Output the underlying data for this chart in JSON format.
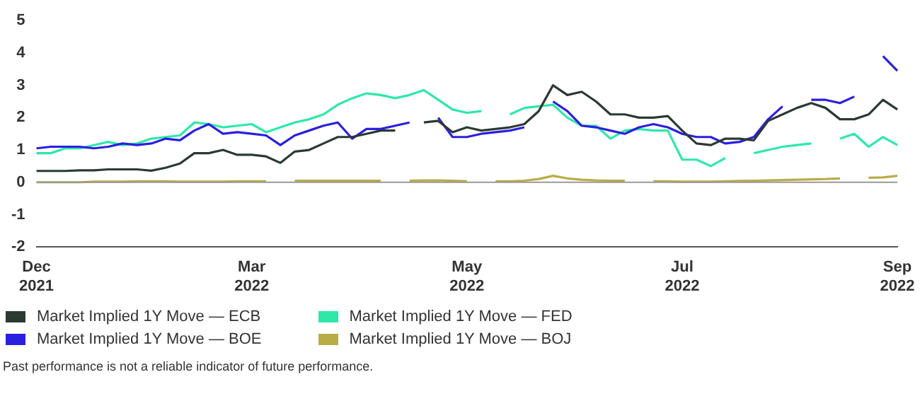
{
  "chart_data": {
    "type": "line",
    "categories": [
      "Dec 2021",
      null,
      null,
      null,
      null,
      null,
      null,
      null,
      null,
      null,
      null,
      null,
      null,
      null,
      null,
      "Mar 2022",
      null,
      null,
      null,
      null,
      null,
      null,
      null,
      null,
      null,
      null,
      null,
      null,
      null,
      null,
      "May 2022",
      null,
      null,
      null,
      null,
      null,
      null,
      null,
      null,
      null,
      null,
      null,
      null,
      null,
      null,
      "Jul 2022",
      null,
      null,
      null,
      null,
      null,
      null,
      null,
      null,
      null,
      null,
      null,
      null,
      null,
      null,
      "Sep 2022"
    ],
    "series": [
      {
        "name": "Market Implied 1Y Move — ECB",
        "color": "#2b3a33",
        "values": [
          0.35,
          0.35,
          0.35,
          0.37,
          0.37,
          0.4,
          0.4,
          0.4,
          0.36,
          0.45,
          0.58,
          0.9,
          0.9,
          1.0,
          0.85,
          0.85,
          0.8,
          0.6,
          0.95,
          1.0,
          1.2,
          1.4,
          1.4,
          1.5,
          1.6,
          1.6,
          null,
          1.85,
          1.9,
          1.55,
          1.7,
          1.6,
          1.65,
          1.7,
          1.8,
          2.2,
          3.0,
          2.7,
          2.8,
          2.5,
          2.1,
          2.1,
          2.0,
          2.0,
          2.05,
          1.6,
          1.2,
          1.15,
          1.35,
          1.35,
          1.3,
          1.9,
          2.1,
          2.3,
          2.45,
          2.3,
          1.95,
          1.95,
          2.1,
          2.55,
          2.25
        ]
      },
      {
        "name": "Market Implied 1Y Move — BOE",
        "color": "#2a1fe0",
        "values": [
          1.05,
          1.1,
          1.1,
          1.1,
          1.05,
          1.1,
          1.2,
          1.15,
          1.2,
          1.35,
          1.3,
          1.6,
          1.8,
          1.5,
          1.55,
          1.5,
          1.45,
          1.15,
          1.45,
          1.6,
          1.75,
          1.85,
          1.35,
          1.65,
          1.65,
          1.75,
          1.85,
          null,
          2.0,
          1.4,
          1.4,
          1.5,
          1.55,
          1.6,
          1.7,
          null,
          2.5,
          2.2,
          1.75,
          1.7,
          1.6,
          1.5,
          1.7,
          1.8,
          1.7,
          1.5,
          1.4,
          1.4,
          1.2,
          1.25,
          1.4,
          1.95,
          2.35,
          null,
          2.55,
          2.55,
          2.45,
          2.65,
          null,
          3.9,
          3.45
        ]
      },
      {
        "name": "Market Implied 1Y Move — FED",
        "color": "#2ee8a8",
        "values": [
          0.9,
          0.9,
          1.05,
          1.05,
          1.15,
          1.25,
          1.15,
          1.2,
          1.35,
          1.4,
          1.45,
          1.85,
          1.8,
          1.7,
          1.75,
          1.8,
          1.55,
          1.7,
          1.85,
          1.95,
          2.1,
          2.4,
          2.6,
          2.75,
          2.7,
          2.6,
          2.7,
          2.85,
          2.55,
          2.25,
          2.15,
          2.2,
          null,
          2.1,
          2.3,
          2.35,
          2.4,
          2.0,
          1.75,
          1.75,
          1.35,
          1.6,
          1.65,
          1.6,
          1.6,
          0.7,
          0.7,
          0.5,
          0.75,
          null,
          0.9,
          1.0,
          1.1,
          1.15,
          1.2,
          null,
          1.35,
          1.5,
          1.1,
          1.4,
          1.15
        ]
      },
      {
        "name": "Market Implied 1Y Move — BOJ",
        "color": "#b8ad45",
        "values": [
          0.0,
          0.0,
          0.0,
          0.0,
          0.02,
          0.02,
          0.02,
          0.03,
          0.03,
          0.03,
          0.02,
          0.02,
          0.02,
          0.02,
          0.03,
          0.03,
          0.03,
          null,
          0.05,
          0.05,
          0.05,
          0.05,
          0.05,
          0.05,
          0.05,
          null,
          0.05,
          0.06,
          0.06,
          0.05,
          0.03,
          null,
          0.03,
          0.03,
          0.05,
          0.1,
          0.2,
          0.12,
          0.08,
          0.06,
          0.05,
          0.05,
          null,
          0.03,
          0.03,
          0.02,
          0.02,
          0.02,
          0.03,
          0.04,
          0.05,
          0.06,
          0.07,
          0.08,
          0.09,
          0.1,
          0.12,
          null,
          0.14,
          0.15,
          0.2
        ]
      }
    ],
    "ylim": [
      -2,
      5
    ],
    "yticks": [
      -2,
      -1,
      0,
      1,
      2,
      3,
      4,
      5
    ],
    "ref_lines": [
      {
        "axis": "y",
        "value": 0,
        "color": "#999999"
      }
    ],
    "legend": "bottom",
    "annotations": [
      "Past performance is not a reliable indicator of future performance."
    ]
  }
}
